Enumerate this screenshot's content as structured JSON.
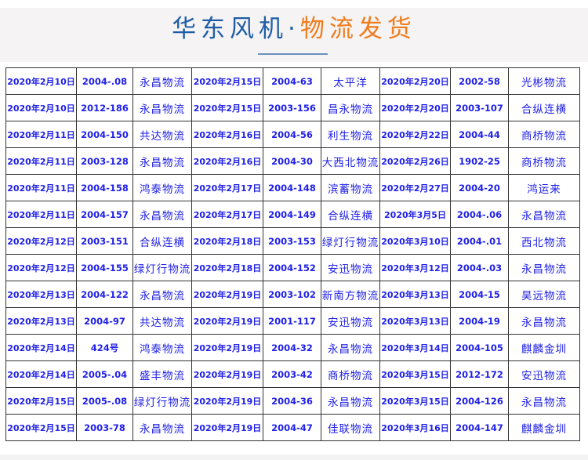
{
  "header": {
    "title_part1": "华东风机·",
    "title_part2": "物流发货",
    "colors": {
      "title_blue": "#1f5ea6",
      "title_orange": "#f07c1c",
      "text_blue": "#2020e8"
    }
  },
  "rows": [
    [
      "2020年2月10日",
      "2004-.08",
      "永昌物流",
      "2020年2月15日",
      "2004-63",
      "太平洋",
      "2020年2月20日",
      "2002-58",
      "光彬物流"
    ],
    [
      "2020年2月10日",
      "2012-186",
      "永昌物流",
      "2020年2月15日",
      "2003-156",
      "昌永物流",
      "2020年2月20日",
      "2003-107",
      "合纵连横"
    ],
    [
      "2020年2月11日",
      "2004-150",
      "共达物流",
      "2020年2月16日",
      "2004-56",
      "利生物流",
      "2020年2月22日",
      "2004-44",
      "商桥物流"
    ],
    [
      "2020年2月11日",
      "2003-128",
      "永昌物流",
      "2020年2月16日",
      "2004-30",
      "大西北物流",
      "2020年2月26日",
      "1902-25",
      "商桥物流"
    ],
    [
      "2020年2月11日",
      "2004-158",
      "鸿泰物流",
      "2020年2月17日",
      "2004-148",
      "滨蓄物流",
      "2020年2月27日",
      "2004-20",
      "鸿运来"
    ],
    [
      "2020年2月11日",
      "2004-157",
      "永昌物流",
      "2020年2月17日",
      "2004-149",
      "合纵连横",
      "2020年3月5日",
      "2004-.06",
      "永昌物流"
    ],
    [
      "2020年2月12日",
      "2003-151",
      "合纵连横",
      "2020年2月18日",
      "2003-153",
      "绿灯行物流",
      "2020年3月10日",
      "2004-.01",
      "西北物流"
    ],
    [
      "2020年2月12日",
      "2004-155",
      "绿灯行物流",
      "2020年2月18日",
      "2004-152",
      "安迅物流",
      "2020年3月12日",
      "2004-.03",
      "永昌物流"
    ],
    [
      "2020年2月13日",
      "2004-122",
      "永昌物流",
      "2020年2月19日",
      "2003-102",
      "新南方物流",
      "2020年3月13日",
      "2004-15",
      "昊远物流"
    ],
    [
      "2020年2月13日",
      "2004-97",
      "共达物流",
      "2020年2月19日",
      "2001-117",
      "安迅物流",
      "2020年3月13日",
      "2004-19",
      "永昌物流"
    ],
    [
      "2020年2月14日",
      "424号",
      "鸿泰物流",
      "2020年2月19日",
      "2004-32",
      "永昌物流",
      "2020年3月14日",
      "2004-105",
      "麒麟金圳"
    ],
    [
      "2020年2月14日",
      "2005-.04",
      "盛丰物流",
      "2020年2月19日",
      "2003-42",
      "商桥物流",
      "2020年3月15日",
      "2012-172",
      "安迅物流"
    ],
    [
      "2020年2月15日",
      "2005-.08",
      "绿灯行物流",
      "2020年2月19日",
      "2004-36",
      "永昌物流",
      "2020年3月15日",
      "2004-126",
      "永昌物流"
    ],
    [
      "2020年2月15日",
      "2003-78",
      "永昌物流",
      "2020年2月19日",
      "2004-47",
      "佳联物流",
      "2020年3月16日",
      "2004-147",
      "麒麟金圳"
    ]
  ]
}
